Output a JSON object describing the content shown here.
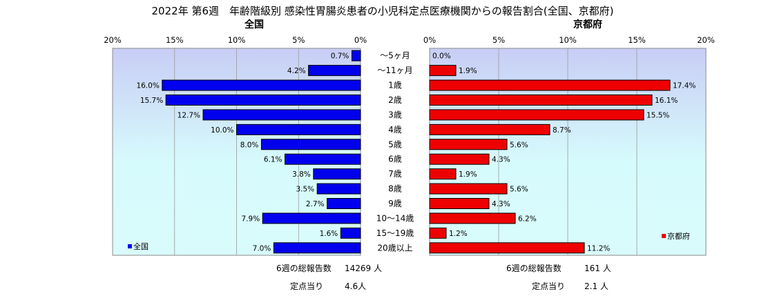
{
  "title": "2022年 第6週　年齢階級別 感染性胃腸炎患者の小児科定点医療機関からの報告割合(全国、京都府)",
  "colors": {
    "national": "#0000ee",
    "kyoto": "#ee0000",
    "plot_bg_top": "#c8cdf5",
    "plot_bg_bottom": "#d6fbfc"
  },
  "chart_data": {
    "type": "bar",
    "orientation": "horizontal",
    "categories": [
      "～5ヶ月",
      "～11ヶ月",
      "1歳",
      "2歳",
      "3歳",
      "4歳",
      "5歳",
      "6歳",
      "7歳",
      "8歳",
      "9歳",
      "10～14歳",
      "15～19歳",
      "20歳以上"
    ],
    "unit": "%",
    "xlim": [
      0,
      20
    ],
    "ticks": [
      "20%",
      "15%",
      "10%",
      "5%",
      "0%"
    ],
    "ticks_right": [
      "0%",
      "5%",
      "10%",
      "15%",
      "20%"
    ],
    "series": [
      {
        "name": "全国",
        "panel_title": "全国",
        "legend": "全国",
        "legend_position": "bottom-left",
        "values": [
          0.7,
          4.2,
          16.0,
          15.7,
          12.7,
          10.0,
          8.0,
          6.1,
          3.8,
          3.5,
          2.7,
          7.9,
          1.6,
          7.0
        ],
        "value_labels": [
          "0.7%",
          "4.2%",
          "16.0%",
          "15.7%",
          "12.7%",
          "10.0%",
          "8.0%",
          "6.1%",
          "3.8%",
          "3.5%",
          "2.7%",
          "7.9%",
          "1.6%",
          "7.0%"
        ]
      },
      {
        "name": "京都府",
        "panel_title": "京都府",
        "legend": "京都府",
        "legend_position": "bottom-right",
        "values": [
          0.0,
          1.9,
          17.4,
          16.1,
          15.5,
          8.7,
          5.6,
          4.3,
          1.9,
          5.6,
          4.3,
          6.2,
          1.2,
          11.2
        ],
        "value_labels": [
          "0.0%",
          "1.9%",
          "17.4%",
          "16.1%",
          "15.5%",
          "8.7%",
          "5.6%",
          "4.3%",
          "1.9%",
          "5.6%",
          "4.3%",
          "6.2%",
          "1.2%",
          "11.2%"
        ]
      }
    ],
    "grid": true
  },
  "footer": {
    "national": {
      "total_label": "6週の総報告数",
      "total_value": "14269 人",
      "per_site_label": "定点当り",
      "per_site_value": "4.6人"
    },
    "kyoto": {
      "total_label": "6週の総報告数",
      "total_value": "161 人",
      "per_site_label": "定点当り",
      "per_site_value": "2.1 人"
    }
  }
}
